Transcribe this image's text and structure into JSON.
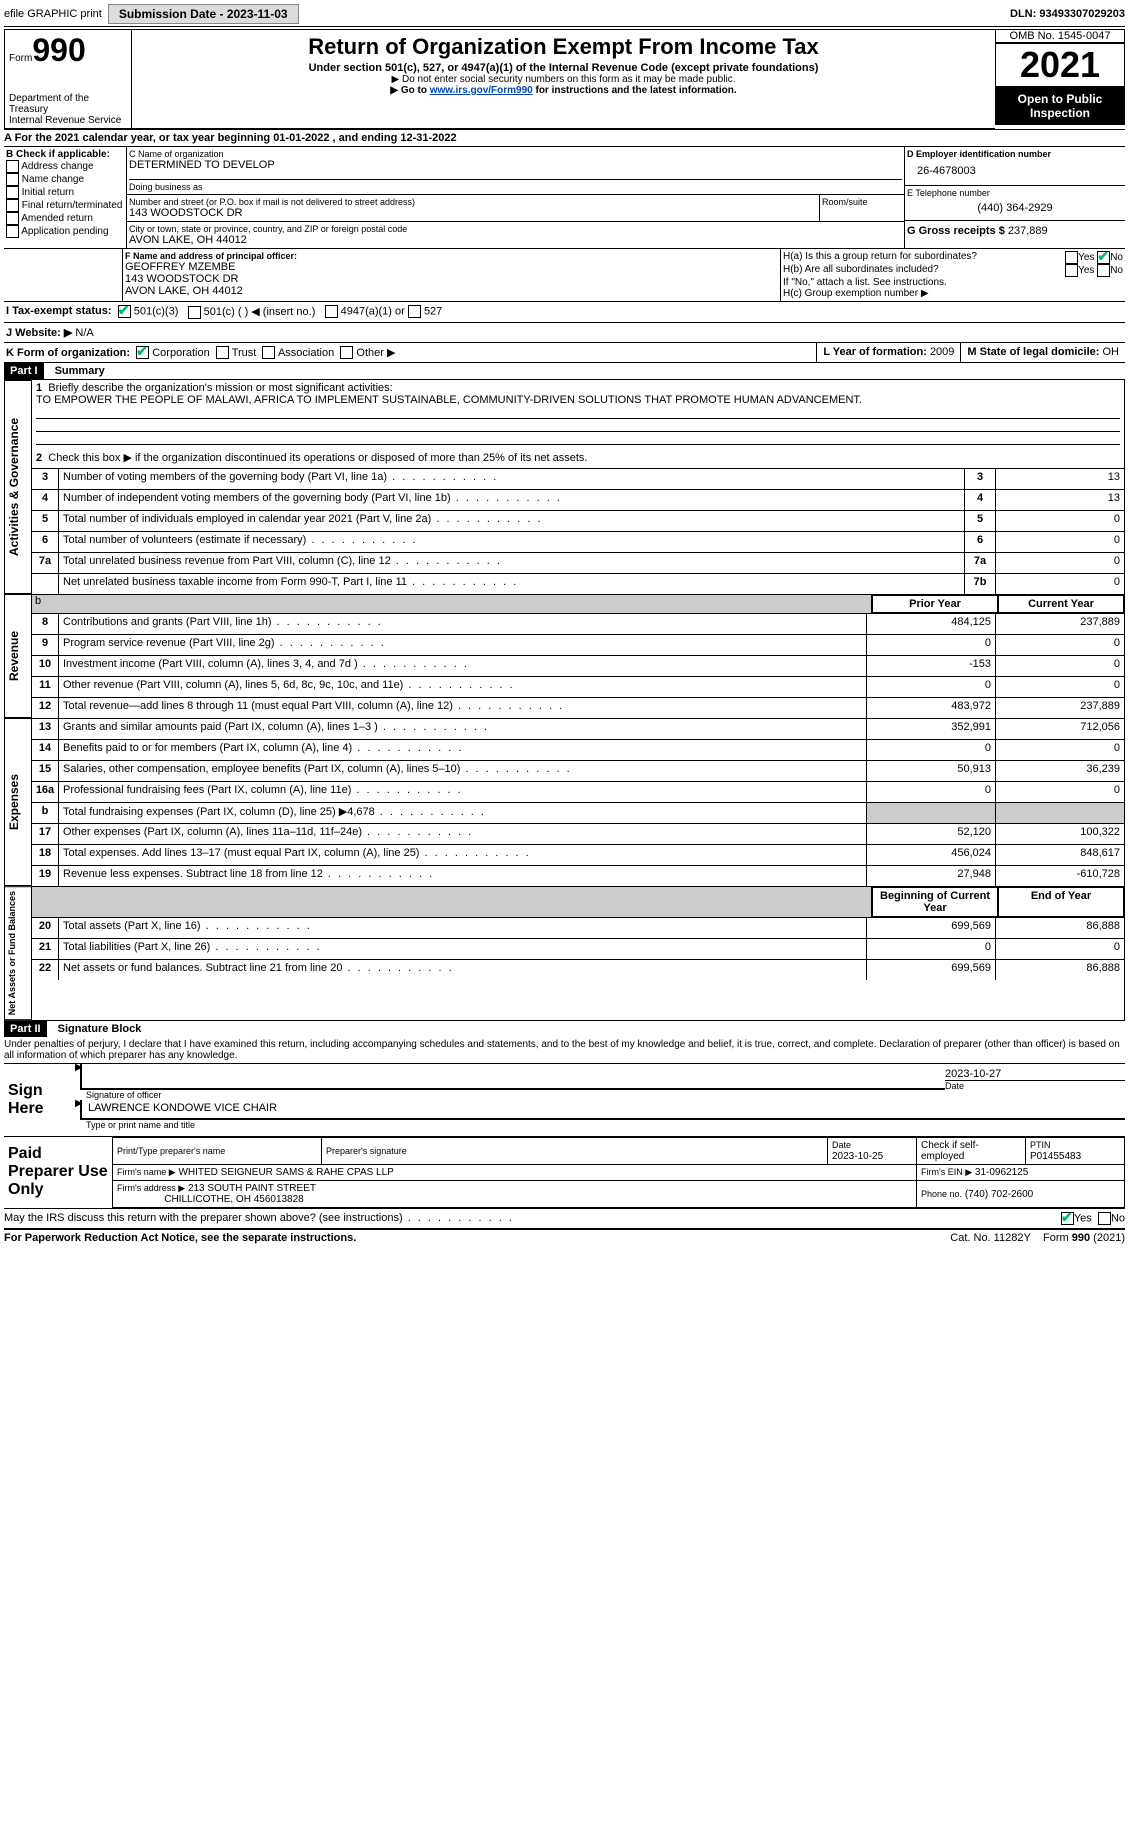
{
  "top": {
    "efile": "efile GRAPHIC print",
    "submission": "Submission Date - 2023-11-03",
    "dln": "DLN: 93493307029203"
  },
  "header": {
    "form_word": "Form",
    "form_num": "990",
    "title": "Return of Organization Exempt From Income Tax",
    "sub1": "Under section 501(c), 527, or 4947(a)(1) of the Internal Revenue Code (except private foundations)",
    "sub2": "▶ Do not enter social security numbers on this form as it may be made public.",
    "sub3_a": "▶ Go to ",
    "sub3_link": "www.irs.gov/Form990",
    "sub3_b": " for instructions and the latest information.",
    "dept1": "Department of the Treasury",
    "dept2": "Internal Revenue Service",
    "omb": "OMB No. 1545-0047",
    "year": "2021",
    "open1": "Open to Public",
    "open2": "Inspection"
  },
  "A": {
    "text": "A For the 2021 calendar year, or tax year beginning 01-01-2022   , and ending 12-31-2022"
  },
  "B": {
    "label": "B Check if applicable:",
    "opts": [
      "Address change",
      "Name change",
      "Initial return",
      "Final return/terminated",
      "Amended return",
      "Application pending"
    ]
  },
  "C": {
    "name_lbl": "C Name of organization",
    "name": "DETERMINED TO DEVELOP",
    "dba_lbl": "Doing business as",
    "dba": "",
    "street_lbl": "Number and street (or P.O. box if mail is not delivered to street address)",
    "street": "143 WOODSTOCK DR",
    "room_lbl": "Room/suite",
    "city_lbl": "City or town, state or province, country, and ZIP or foreign postal code",
    "city": "AVON LAKE, OH  44012"
  },
  "D": {
    "lbl": "D Employer identification number",
    "val": "26-4678003"
  },
  "E": {
    "lbl": "E Telephone number",
    "val": "(440) 364-2929"
  },
  "G": {
    "lbl": "G Gross receipts $",
    "val": "237,889"
  },
  "F": {
    "lbl": "F  Name and address of principal officer:",
    "name": "GEOFFREY MZEMBE",
    "l2": "143 WOODSTOCK DR",
    "l3": "AVON LAKE, OH  44012"
  },
  "H": {
    "a": "H(a)  Is this a group return for subordinates?",
    "b": "H(b)  Are all subordinates included?",
    "b2": "If \"No,\" attach a list. See instructions.",
    "c": "H(c)  Group exemption number ▶",
    "yes": "Yes",
    "no": "No"
  },
  "I": {
    "lbl": "I   Tax-exempt status:",
    "o1": "501(c)(3)",
    "o2": "501(c) (  ) ◀ (insert no.)",
    "o3": "4947(a)(1) or",
    "o4": "527"
  },
  "J": {
    "lbl": "J   Website: ▶",
    "val": "  N/A"
  },
  "K": {
    "lbl": "K Form of organization:",
    "o1": "Corporation",
    "o2": "Trust",
    "o3": "Association",
    "o4": "Other ▶"
  },
  "L": {
    "lbl": "L Year of formation: ",
    "val": "2009"
  },
  "M": {
    "lbl": "M State of legal domicile: ",
    "val": "OH"
  },
  "part1": {
    "bar": "Part I",
    "title": "Summary"
  },
  "sum": {
    "l1_lbl": "Briefly describe the organization's mission or most significant activities:",
    "l1_val": "TO EMPOWER THE PEOPLE OF MALAWI, AFRICA TO IMPLEMENT SUSTAINABLE, COMMUNITY-DRIVEN SOLUTIONS THAT PROMOTE HUMAN ADVANCEMENT.",
    "l2": "Check this box ▶        if the organization discontinued its operations or disposed of more than 25% of its net assets.",
    "rows": [
      {
        "n": "3",
        "d": "Number of voting members of the governing body (Part VI, line 1a)",
        "b": "3",
        "v": "13"
      },
      {
        "n": "4",
        "d": "Number of independent voting members of the governing body (Part VI, line 1b)",
        "b": "4",
        "v": "13"
      },
      {
        "n": "5",
        "d": "Total number of individuals employed in calendar year 2021 (Part V, line 2a)",
        "b": "5",
        "v": "0"
      },
      {
        "n": "6",
        "d": "Total number of volunteers (estimate if necessary)",
        "b": "6",
        "v": "0"
      },
      {
        "n": "7a",
        "d": "Total unrelated business revenue from Part VIII, column (C), line 12",
        "b": "7a",
        "v": "0"
      },
      {
        "n": "",
        "d": "Net unrelated business taxable income from Form 990-T, Part I, line 11",
        "b": "7b",
        "v": "0"
      }
    ],
    "hdr_prior": "Prior Year",
    "hdr_curr": "Current Year",
    "rev": [
      {
        "n": "8",
        "d": "Contributions and grants (Part VIII, line 1h)",
        "p": "484,125",
        "c": "237,889"
      },
      {
        "n": "9",
        "d": "Program service revenue (Part VIII, line 2g)",
        "p": "0",
        "c": "0"
      },
      {
        "n": "10",
        "d": "Investment income (Part VIII, column (A), lines 3, 4, and 7d )",
        "p": "-153",
        "c": "0"
      },
      {
        "n": "11",
        "d": "Other revenue (Part VIII, column (A), lines 5, 6d, 8c, 9c, 10c, and 11e)",
        "p": "0",
        "c": "0"
      },
      {
        "n": "12",
        "d": "Total revenue—add lines 8 through 11 (must equal Part VIII, column (A), line 12)",
        "p": "483,972",
        "c": "237,889"
      }
    ],
    "exp": [
      {
        "n": "13",
        "d": "Grants and similar amounts paid (Part IX, column (A), lines 1–3 )",
        "p": "352,991",
        "c": "712,056"
      },
      {
        "n": "14",
        "d": "Benefits paid to or for members (Part IX, column (A), line 4)",
        "p": "0",
        "c": "0"
      },
      {
        "n": "15",
        "d": "Salaries, other compensation, employee benefits (Part IX, column (A), lines 5–10)",
        "p": "50,913",
        "c": "36,239"
      },
      {
        "n": "16a",
        "d": "Professional fundraising fees (Part IX, column (A), line 11e)",
        "p": "0",
        "c": "0"
      },
      {
        "n": "b",
        "d": "Total fundraising expenses (Part IX, column (D), line 25) ▶4,678",
        "p": "",
        "c": "",
        "shade": true
      },
      {
        "n": "17",
        "d": "Other expenses (Part IX, column (A), lines 11a–11d, 11f–24e)",
        "p": "52,120",
        "c": "100,322"
      },
      {
        "n": "18",
        "d": "Total expenses. Add lines 13–17 (must equal Part IX, column (A), line 25)",
        "p": "456,024",
        "c": "848,617"
      },
      {
        "n": "19",
        "d": "Revenue less expenses. Subtract line 18 from line 12",
        "p": "27,948",
        "c": "-610,728"
      }
    ],
    "hdr_beg": "Beginning of Current Year",
    "hdr_end": "End of Year",
    "net": [
      {
        "n": "20",
        "d": "Total assets (Part X, line 16)",
        "p": "699,569",
        "c": "86,888"
      },
      {
        "n": "21",
        "d": "Total liabilities (Part X, line 26)",
        "p": "0",
        "c": "0"
      },
      {
        "n": "22",
        "d": "Net assets or fund balances. Subtract line 21 from line 20",
        "p": "699,569",
        "c": "86,888"
      }
    ]
  },
  "side": {
    "act": "Activities & Governance",
    "rev": "Revenue",
    "exp": "Expenses",
    "net": "Net Assets or Fund Balances"
  },
  "part2": {
    "bar": "Part II",
    "title": "Signature Block",
    "decl": "Under penalties of perjury, I declare that I have examined this return, including accompanying schedules and statements, and to the best of my knowledge and belief, it is true, correct, and complete. Declaration of preparer (other than officer) is based on all information of which preparer has any knowledge."
  },
  "sign": {
    "here": "Sign Here",
    "sig_lbl": "Signature of officer",
    "date_lbl": "Date",
    "date": "2023-10-27",
    "name": "LAWRENCE KONDOWE  VICE CHAIR",
    "name_lbl": "Type or print name and title"
  },
  "paid": {
    "lbl": "Paid Preparer Use Only",
    "c1": "Print/Type preparer's name",
    "c2": "Preparer's signature",
    "c3_lbl": "Date",
    "c3": "2023-10-25",
    "c4": "Check        if self-employed",
    "c5_lbl": "PTIN",
    "c5": "P01455483",
    "firm_lbl": "Firm's name    ▶",
    "firm": "WHITED SEIGNEUR SAMS & RAHE CPAS LLP",
    "ein_lbl": "Firm's EIN ▶",
    "ein": "31-0962125",
    "addr_lbl": "Firm's address ▶",
    "addr1": "213 SOUTH PAINT STREET",
    "addr2": "CHILLICOTHE, OH  456013828",
    "phone_lbl": "Phone no.",
    "phone": "(740) 702-2600"
  },
  "foot": {
    "q": "May the IRS discuss this return with the preparer shown above? (see instructions)",
    "yes": "Yes",
    "no": "No",
    "pra": "For Paperwork Reduction Act Notice, see the separate instructions.",
    "cat": "Cat. No. 11282Y",
    "form": "Form 990 (2021)"
  }
}
